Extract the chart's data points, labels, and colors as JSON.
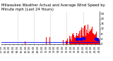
{
  "title": "Milwaukee Weather Actual and Average Wind Speed by Minute mph (Last 24 Hours)",
  "n_minutes": 1440,
  "avg_wind_speed": 1.2,
  "background_color": "#ffffff",
  "bar_color": "#ff0000",
  "avg_color": "#0000ff",
  "ylim": [
    0,
    26
  ],
  "yticks": [
    0,
    4,
    8,
    12,
    16,
    20,
    24
  ],
  "grid_color": "#bbbbbb",
  "title_fontsize": 3.8,
  "tick_fontsize": 2.8,
  "figwidth": 1.6,
  "figheight": 0.87,
  "dpi": 100
}
